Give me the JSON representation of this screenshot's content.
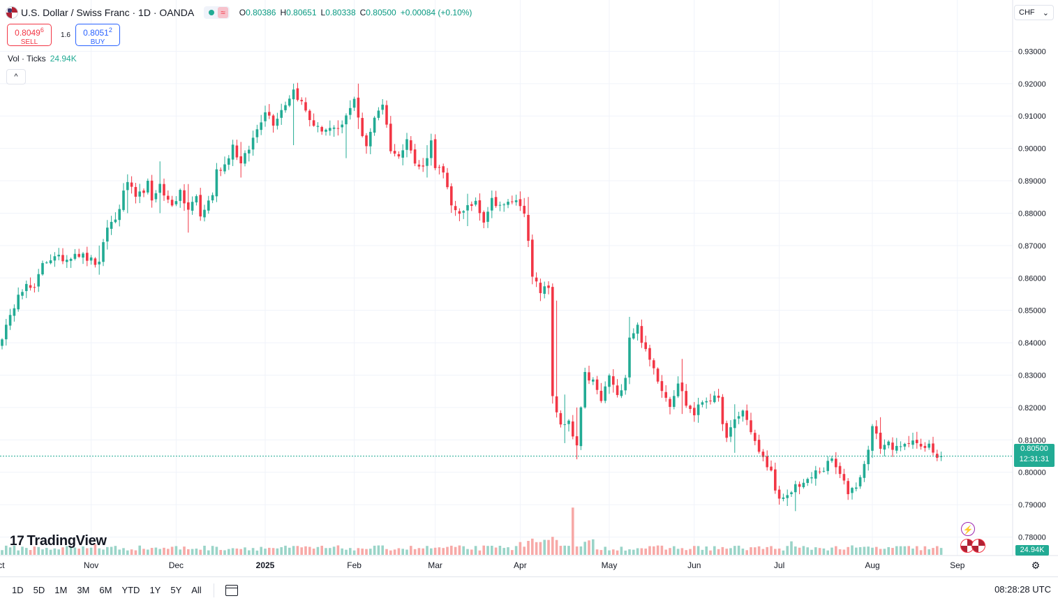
{
  "header": {
    "symbol_title": "U.S. Dollar / Swiss Franc · 1D · OANDA",
    "flag_icon": "us-flag-icon",
    "status_wave": "≈",
    "ohlc": {
      "o_label": "O",
      "o_value": "0.80386",
      "h_label": "H",
      "h_value": "0.80651",
      "l_label": "L",
      "l_value": "0.80338",
      "c_label": "C",
      "c_value": "0.80500",
      "change": "+0.00084 (+0.10%)"
    }
  },
  "trade": {
    "sell_price": "0.8049",
    "sell_super": "6",
    "sell_label": "SELL",
    "spread": "1.6",
    "buy_price": "0.8051",
    "buy_super": "2",
    "buy_label": "BUY"
  },
  "volume_legend": {
    "label": "Vol · Ticks",
    "value": "24.94K"
  },
  "collapse_symbol": "^",
  "currency": {
    "value": "CHF",
    "arrow": "⌄"
  },
  "logo_text": "TradingView",
  "logo_mark": "17",
  "last_price": {
    "price": "0.80500",
    "countdown": "12:31:31"
  },
  "volume_tag": "24.94K",
  "toolbar": {
    "ranges": [
      "1D",
      "5D",
      "1M",
      "3M",
      "6M",
      "YTD",
      "1Y",
      "5Y",
      "All"
    ],
    "clock": "08:28:28 UTC"
  },
  "colors": {
    "up": "#22ab94",
    "down": "#f23645",
    "vol_up": "#9ad4c8",
    "vol_down": "#f7a9a7",
    "grid": "#f0f3fa",
    "price_line": "#22ab94"
  },
  "chart_data": {
    "type": "candlestick",
    "interval": "1D",
    "y_axis": {
      "ylim": [
        0.7745,
        0.9385
      ],
      "ticks": [
        "0.93000",
        "0.92000",
        "0.91000",
        "0.90000",
        "0.89000",
        "0.88000",
        "0.87000",
        "0.86000",
        "0.85000",
        "0.84000",
        "0.83000",
        "0.82000",
        "0.81000",
        "0.80000",
        "0.79000",
        "0.78000"
      ],
      "tick_values": [
        0.93,
        0.92,
        0.91,
        0.9,
        0.89,
        0.88,
        0.87,
        0.86,
        0.85,
        0.84,
        0.83,
        0.82,
        0.81,
        0.8,
        0.79,
        0.78
      ]
    },
    "x_axis": {
      "ticks": [
        {
          "label": "Oct",
          "index": -1,
          "bold": false
        },
        {
          "label": "Nov",
          "index": 22,
          "bold": false
        },
        {
          "label": "Dec",
          "index": 43,
          "bold": false
        },
        {
          "label": "2025",
          "index": 65,
          "bold": true
        },
        {
          "label": "Feb",
          "index": 87,
          "bold": false
        },
        {
          "label": "Mar",
          "index": 107,
          "bold": false
        },
        {
          "label": "Apr",
          "index": 128,
          "bold": false
        },
        {
          "label": "May",
          "index": 150,
          "bold": false
        },
        {
          "label": "Jun",
          "index": 171,
          "bold": false
        },
        {
          "label": "Jul",
          "index": 192,
          "bold": false
        },
        {
          "label": "Aug",
          "index": 215,
          "bold": false
        },
        {
          "label": "Sep",
          "index": 236,
          "bold": false
        }
      ]
    },
    "last_price": 0.805,
    "anchors": [
      [
        0,
        0.842
      ],
      [
        2,
        0.8475
      ],
      [
        4,
        0.856
      ],
      [
        6,
        0.8575
      ],
      [
        8,
        0.856
      ],
      [
        10,
        0.865
      ],
      [
        12,
        0.866
      ],
      [
        16,
        0.866
      ],
      [
        18,
        0.868
      ],
      [
        21,
        0.866
      ],
      [
        24,
        0.864
      ],
      [
        26,
        0.876
      ],
      [
        28,
        0.878
      ],
      [
        31,
        0.89
      ],
      [
        33,
        0.884
      ],
      [
        36,
        0.889
      ],
      [
        37,
        0.883
      ],
      [
        39,
        0.89
      ],
      [
        40,
        0.885
      ],
      [
        42,
        0.883
      ],
      [
        44,
        0.886
      ],
      [
        46,
        0.881
      ],
      [
        48,
        0.885
      ],
      [
        49,
        0.879
      ],
      [
        52,
        0.886
      ],
      [
        53,
        0.893
      ],
      [
        55,
        0.895
      ],
      [
        57,
        0.901
      ],
      [
        59,
        0.895
      ],
      [
        61,
        0.9
      ],
      [
        63,
        0.906
      ],
      [
        65,
        0.912
      ],
      [
        67,
        0.908
      ],
      [
        70,
        0.914
      ],
      [
        72,
        0.918
      ],
      [
        74,
        0.914
      ],
      [
        76,
        0.909
      ],
      [
        78,
        0.906
      ],
      [
        81,
        0.906
      ],
      [
        83,
        0.905
      ],
      [
        86,
        0.912
      ],
      [
        87,
        0.916
      ],
      [
        89,
        0.904
      ],
      [
        90,
        0.9
      ],
      [
        92,
        0.91
      ],
      [
        94,
        0.914
      ],
      [
        95,
        0.907
      ],
      [
        96,
        0.9
      ],
      [
        98,
        0.897
      ],
      [
        100,
        0.904
      ],
      [
        102,
        0.895
      ],
      [
        104,
        0.894
      ],
      [
        106,
        0.902
      ],
      [
        107,
        0.895
      ],
      [
        109,
        0.892
      ],
      [
        111,
        0.882
      ],
      [
        114,
        0.88
      ],
      [
        117,
        0.884
      ],
      [
        119,
        0.878
      ],
      [
        121,
        0.884
      ],
      [
        124,
        0.882
      ],
      [
        126,
        0.884
      ],
      [
        128,
        0.883
      ],
      [
        129,
        0.881
      ],
      [
        131,
        0.86
      ],
      [
        133,
        0.856
      ],
      [
        135,
        0.857
      ],
      [
        136,
        0.824
      ],
      [
        138,
        0.814
      ],
      [
        140,
        0.815
      ],
      [
        141,
        0.811
      ],
      [
        142,
        0.808
      ],
      [
        144,
        0.83
      ],
      [
        146,
        0.828
      ],
      [
        148,
        0.822
      ],
      [
        150,
        0.83
      ],
      [
        152,
        0.823
      ],
      [
        154,
        0.83
      ],
      [
        155,
        0.842
      ],
      [
        157,
        0.845
      ],
      [
        159,
        0.837
      ],
      [
        161,
        0.832
      ],
      [
        163,
        0.826
      ],
      [
        165,
        0.821
      ],
      [
        167,
        0.828
      ],
      [
        169,
        0.821
      ],
      [
        171,
        0.818
      ],
      [
        173,
        0.822
      ],
      [
        175,
        0.823
      ],
      [
        177,
        0.822
      ],
      [
        179,
        0.81
      ],
      [
        181,
        0.816
      ],
      [
        183,
        0.819
      ],
      [
        185,
        0.813
      ],
      [
        187,
        0.806
      ],
      [
        190,
        0.8
      ],
      [
        192,
        0.791
      ],
      [
        194,
        0.792
      ],
      [
        196,
        0.796
      ],
      [
        199,
        0.797
      ],
      [
        201,
        0.8
      ],
      [
        203,
        0.801
      ],
      [
        205,
        0.804
      ],
      [
        207,
        0.799
      ],
      [
        209,
        0.794
      ],
      [
        211,
        0.796
      ],
      [
        213,
        0.802
      ],
      [
        215,
        0.814
      ],
      [
        217,
        0.808
      ],
      [
        219,
        0.809
      ],
      [
        221,
        0.807
      ],
      [
        223,
        0.808
      ],
      [
        225,
        0.811
      ],
      [
        227,
        0.807
      ],
      [
        229,
        0.808
      ],
      [
        231,
        0.805
      ],
      [
        232,
        0.805
      ]
    ],
    "spikes": [
      [
        24,
        0.87,
        0.861
      ],
      [
        31,
        0.892,
        0.88
      ],
      [
        39,
        0.896,
        0.88
      ],
      [
        46,
        0.889,
        0.874
      ],
      [
        59,
        0.902,
        0.891
      ],
      [
        72,
        0.92,
        0.901
      ],
      [
        85,
        0.91,
        0.897
      ],
      [
        88,
        0.92,
        0.906
      ],
      [
        105,
        0.901,
        0.891
      ],
      [
        115,
        0.886,
        0.876
      ],
      [
        130,
        0.885,
        0.879
      ],
      [
        137,
        0.853,
        0.838
      ],
      [
        139,
        0.824,
        0.809
      ],
      [
        142,
        0.82,
        0.804
      ],
      [
        155,
        0.848,
        0.833
      ],
      [
        168,
        0.835,
        0.818
      ],
      [
        181,
        0.821,
        0.806
      ],
      [
        196,
        0.796,
        0.788
      ],
      [
        217,
        0.817,
        0.806
      ]
    ],
    "volume": {
      "base": 42,
      "surge_start": 128,
      "surge_end": 146,
      "surge_level": 70,
      "spikes": [
        [
          23,
          48
        ],
        [
          88,
          30
        ],
        [
          130,
          62
        ],
        [
          131,
          72
        ],
        [
          136,
          80
        ],
        [
          137,
          66
        ],
        [
          141,
          210
        ],
        [
          195,
          60
        ]
      ]
    }
  }
}
